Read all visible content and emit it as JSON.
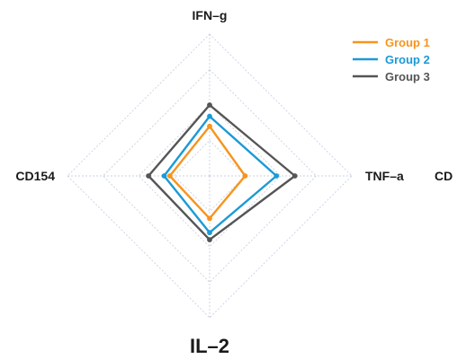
{
  "chart_data": {
    "type": "radar",
    "axes": [
      "IFN–g",
      "TNF–a",
      "IL–2",
      "CD154"
    ],
    "extra_axis_label": "CD",
    "range": [
      0,
      1
    ],
    "grid": true,
    "grid_levels": 4,
    "legend_position": "top-right",
    "series": [
      {
        "name": "Group 1",
        "color": "#f7941d",
        "values": [
          0.35,
          0.25,
          0.3,
          0.28
        ]
      },
      {
        "name": "Group 2",
        "color": "#1b9ad6",
        "values": [
          0.42,
          0.47,
          0.4,
          0.32
        ]
      },
      {
        "name": "Group 3",
        "color": "#555555",
        "values": [
          0.5,
          0.6,
          0.45,
          0.43
        ]
      }
    ]
  }
}
